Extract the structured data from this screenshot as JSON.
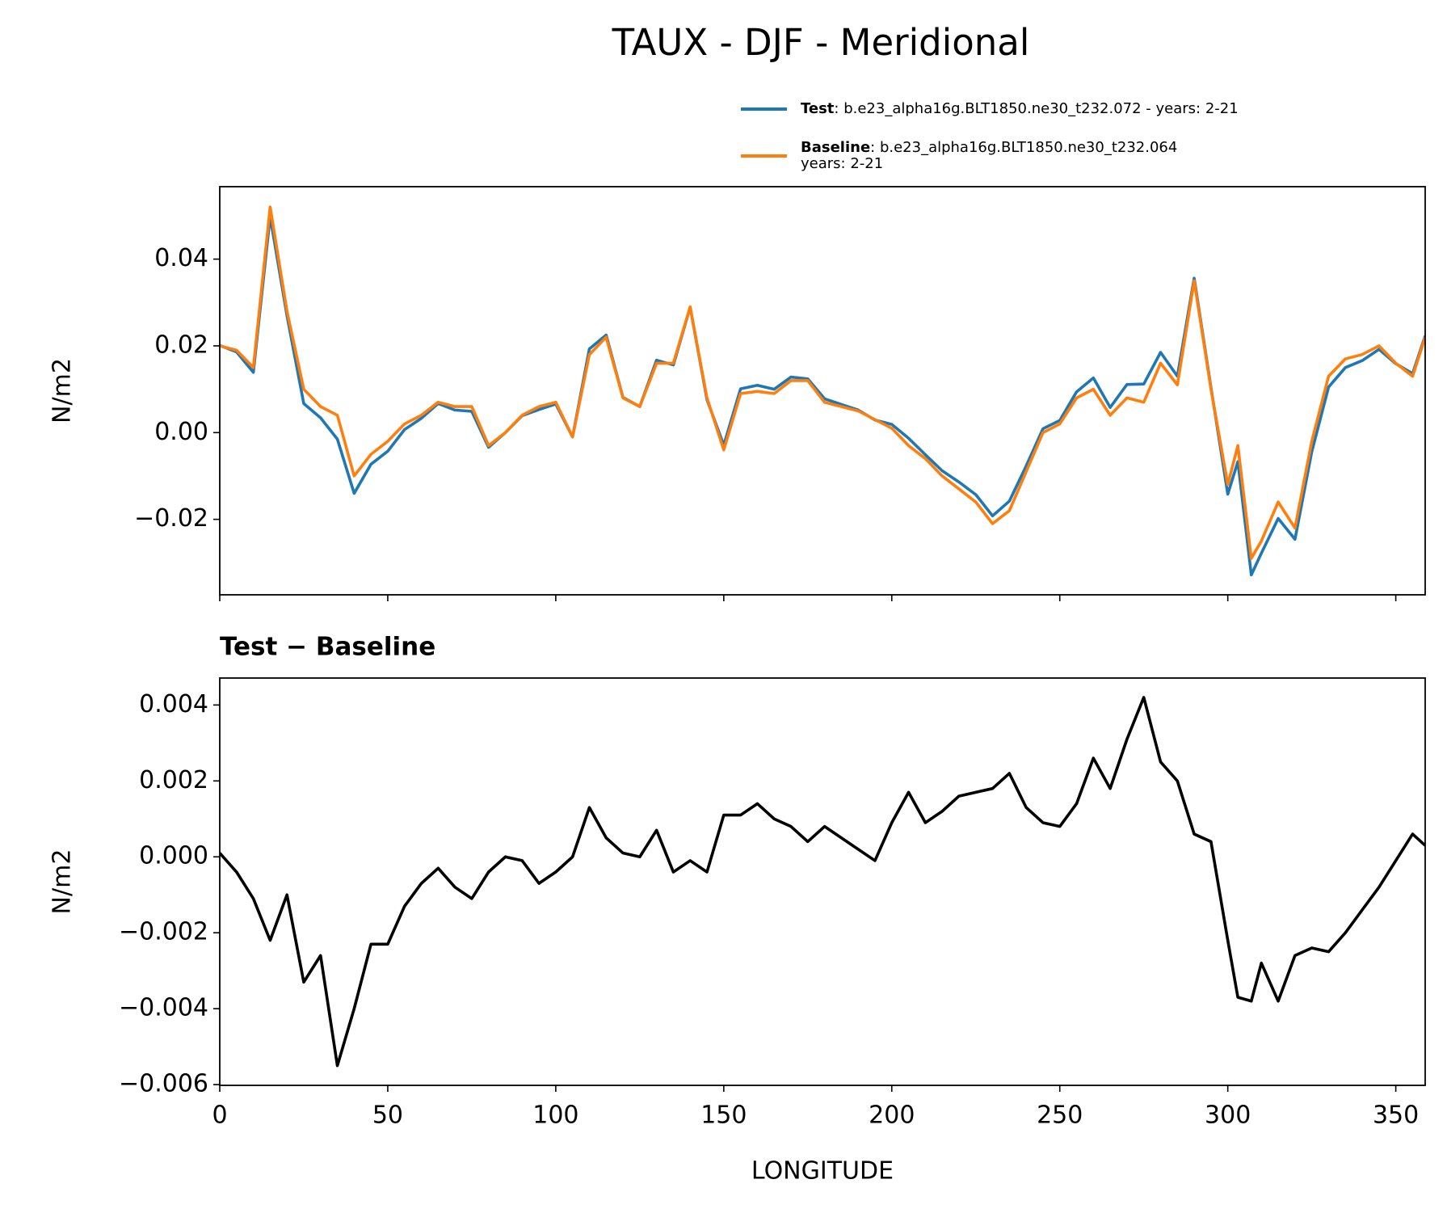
{
  "title": "TAUX - DJF - Meridional",
  "chart_data": [
    {
      "type": "line",
      "ylabel": "N/m2",
      "legend": "upper right",
      "x": [
        0,
        5,
        10,
        15,
        20,
        25,
        30,
        35,
        40,
        45,
        50,
        55,
        60,
        65,
        70,
        75,
        80,
        85,
        90,
        95,
        100,
        105,
        110,
        115,
        120,
        125,
        130,
        135,
        140,
        145,
        150,
        155,
        160,
        165,
        170,
        175,
        180,
        185,
        190,
        195,
        200,
        205,
        210,
        215,
        220,
        225,
        230,
        235,
        240,
        245,
        250,
        255,
        260,
        265,
        270,
        275,
        280,
        285,
        290,
        295,
        300,
        303,
        307,
        310,
        315,
        320,
        325,
        330,
        335,
        340,
        345,
        350,
        355,
        358.75
      ],
      "series": [
        {
          "name": "Test",
          "legend_label": [
            ": b.e23_alpha16g.BLT1850.ne30_t232.072 - years: 2-21"
          ],
          "color": "#1f77b4",
          "values": [
            0.0201,
            0.0186,
            0.0139,
            0.0498,
            0.027,
            0.0067,
            0.0034,
            -0.0015,
            -0.014,
            -0.0073,
            -0.0043,
            0.0007,
            0.0033,
            0.0067,
            0.0052,
            0.0049,
            -0.0034,
            0.0,
            0.0039,
            0.0053,
            0.0066,
            -0.001,
            0.0193,
            0.0225,
            0.0081,
            0.006,
            0.0167,
            0.0156,
            0.0289,
            0.0076,
            -0.0029,
            0.0101,
            0.0109,
            0.01,
            0.0128,
            0.0124,
            0.0078,
            0.0065,
            0.0052,
            0.0029,
            0.0019,
            -0.0013,
            -0.0051,
            -0.0088,
            -0.0114,
            -0.0143,
            -0.0192,
            -0.0158,
            -0.0077,
            0.0009,
            0.0028,
            0.0094,
            0.0126,
            0.0058,
            0.0111,
            0.0112,
            0.0185,
            0.013,
            0.0356,
            0.0104,
            -0.0142,
            -0.0067,
            -0.0328,
            -0.0278,
            -0.0198,
            -0.0246,
            -0.0044,
            0.0105,
            0.015,
            0.0166,
            0.0192,
            0.0159,
            0.0136,
            0.0223
          ]
        },
        {
          "name": "Baseline",
          "legend_label": [
            ": b.e23_alpha16g.BLT1850.ne30_t232.064",
            "years: 2-21"
          ],
          "color": "#ff7f0e",
          "values": [
            0.02,
            0.019,
            0.015,
            0.052,
            0.028,
            0.01,
            0.006,
            0.004,
            -0.01,
            -0.005,
            -0.002,
            0.002,
            0.004,
            0.007,
            0.006,
            0.006,
            -0.003,
            0.0,
            0.004,
            0.006,
            0.007,
            -0.001,
            0.018,
            0.022,
            0.008,
            0.006,
            0.016,
            0.016,
            0.029,
            0.008,
            -0.004,
            0.009,
            0.0095,
            0.009,
            0.012,
            0.012,
            0.007,
            0.006,
            0.005,
            0.003,
            0.001,
            -0.003,
            -0.006,
            -0.01,
            -0.013,
            -0.016,
            -0.021,
            -0.018,
            -0.009,
            0.0,
            0.002,
            0.008,
            0.01,
            0.004,
            0.008,
            0.007,
            0.016,
            0.011,
            0.035,
            0.01,
            -0.012,
            -0.003,
            -0.029,
            -0.025,
            -0.016,
            -0.022,
            -0.002,
            0.013,
            0.017,
            0.018,
            0.02,
            0.016,
            0.013,
            0.022
          ]
        }
      ],
      "xlim": [
        0,
        358.75
      ],
      "xticks": [
        0,
        50,
        100,
        150,
        200,
        250,
        300,
        350
      ],
      "show_xtick_labels": false,
      "ylim": [
        -0.0374,
        0.0567
      ],
      "yticks": [
        {
          "value": -0.02,
          "label": "−0.02"
        },
        {
          "value": 0,
          "label": "0.00"
        },
        0.02,
        0.04
      ]
    },
    {
      "type": "line",
      "title": "Test − Baseline",
      "ylabel": "N/m2",
      "xlabel": "LONGITUDE",
      "color": "#000000",
      "x": [
        0,
        5,
        10,
        15,
        20,
        25,
        30,
        35,
        40,
        45,
        50,
        55,
        60,
        65,
        70,
        75,
        80,
        85,
        90,
        95,
        100,
        105,
        110,
        115,
        120,
        125,
        130,
        135,
        140,
        145,
        150,
        155,
        160,
        165,
        170,
        175,
        180,
        185,
        190,
        195,
        200,
        205,
        210,
        215,
        220,
        225,
        230,
        235,
        240,
        245,
        250,
        255,
        260,
        265,
        270,
        275,
        280,
        285,
        290,
        295,
        300,
        303,
        307,
        310,
        315,
        320,
        325,
        330,
        335,
        340,
        345,
        350,
        355,
        358.75
      ],
      "values": [
        0.0001,
        -0.0004,
        -0.0011,
        -0.0022,
        -0.001,
        -0.0033,
        -0.0026,
        -0.0055,
        -0.004,
        -0.0023,
        -0.0023,
        -0.0013,
        -0.0007,
        -0.0003,
        -0.0008,
        -0.0011,
        -0.0004,
        0.0,
        -0.0001,
        -0.0007,
        -0.0004,
        0.0,
        0.0013,
        0.0005,
        0.0001,
        0.0,
        0.0007,
        -0.0004,
        -0.0001,
        -0.0004,
        0.0011,
        0.0011,
        0.0014,
        0.001,
        0.0008,
        0.0004,
        0.0008,
        0.0005,
        0.0002,
        -0.0001,
        0.0009,
        0.0017,
        0.0009,
        0.0012,
        0.0016,
        0.0017,
        0.0018,
        0.0022,
        0.0013,
        0.0009,
        0.0008,
        0.0014,
        0.0026,
        0.0018,
        0.0031,
        0.0042,
        0.0025,
        0.002,
        0.0006,
        0.0004,
        -0.0022,
        -0.0037,
        -0.0038,
        -0.0028,
        -0.0038,
        -0.0026,
        -0.0024,
        -0.0025,
        -0.002,
        -0.0014,
        -0.0008,
        -0.0001,
        0.0006,
        0.0003
      ],
      "xlim": [
        0,
        358.75
      ],
      "xticks": [
        0,
        50,
        100,
        150,
        200,
        250,
        300,
        350
      ],
      "show_xtick_labels": true,
      "ylim": [
        -0.00602,
        0.00471
      ],
      "yticks": [
        {
          "value": -0.006,
          "label": "−0.006"
        },
        {
          "value": -0.004,
          "label": "−0.004"
        },
        {
          "value": -0.002,
          "label": "−0.002"
        },
        {
          "value": 0,
          "label": "0.000"
        },
        0.002,
        0.004
      ]
    }
  ]
}
